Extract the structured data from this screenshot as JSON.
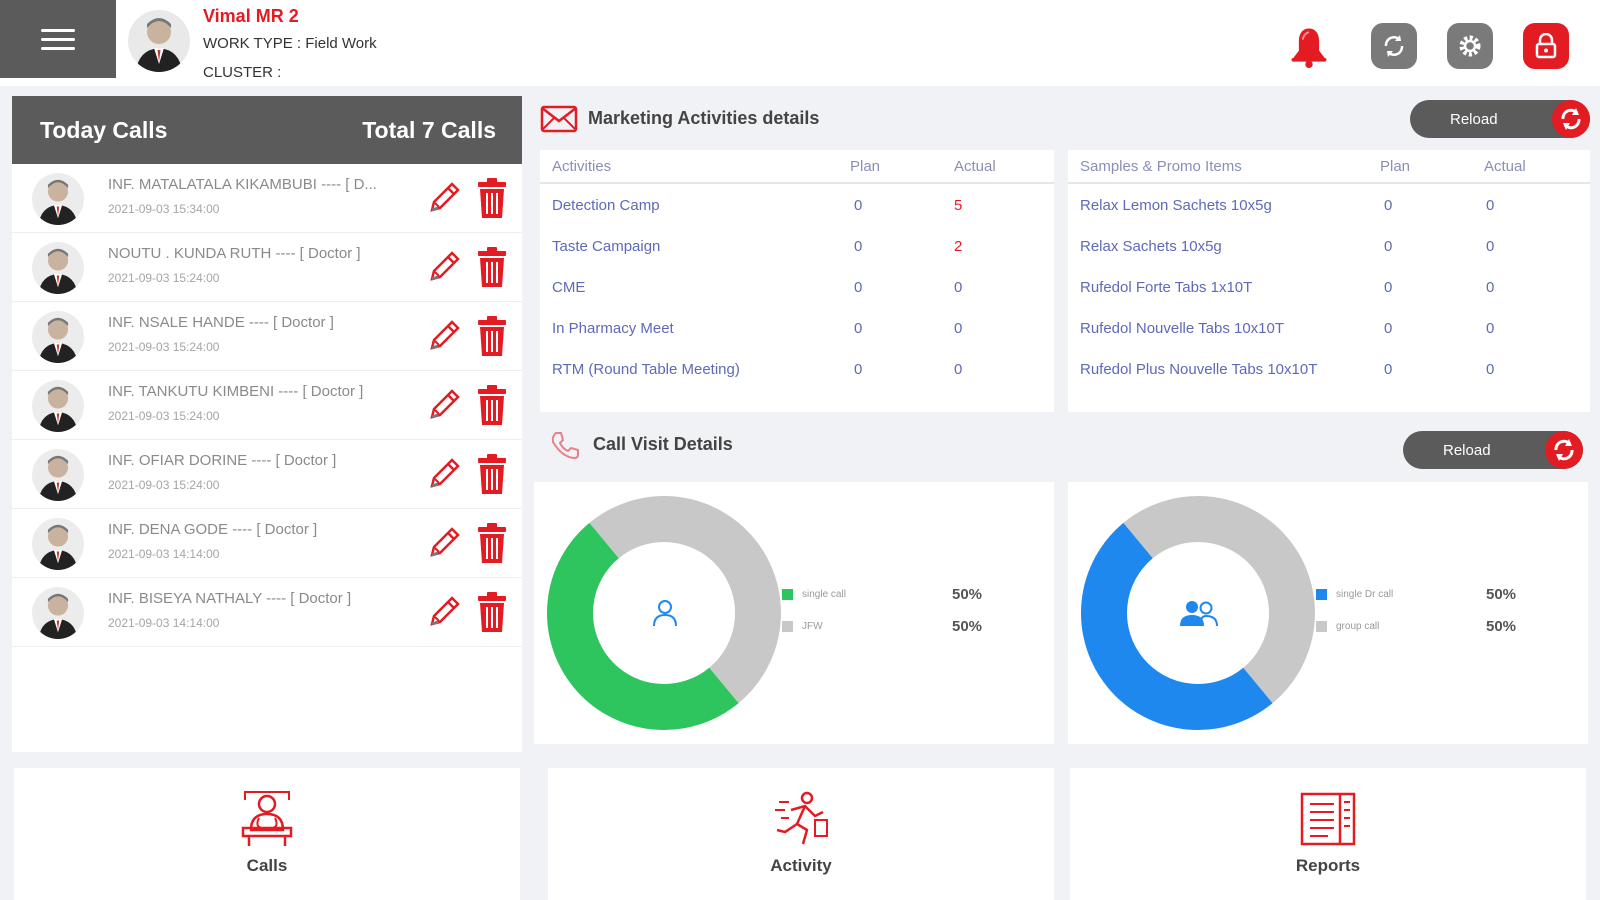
{
  "header": {
    "user_name": "Vimal MR 2",
    "work_type": "WORK TYPE : Field Work",
    "cluster": "CLUSTER :",
    "icons": [
      "bell-icon",
      "sync-icon",
      "settings-icon",
      "lock-icon"
    ]
  },
  "today_calls": {
    "title": "Today Calls",
    "total": "Total 7 Calls",
    "items": [
      {
        "name": "INF. MATALATALA KIKAMBUBI ---- [ D...",
        "time": "2021-09-03 15:34:00"
      },
      {
        "name": "NOUTU . KUNDA RUTH ---- [ Doctor ]",
        "time": "2021-09-03 15:24:00"
      },
      {
        "name": "INF. NSALE HANDE ---- [ Doctor ]",
        "time": "2021-09-03 15:24:00"
      },
      {
        "name": "INF. TANKUTU KIMBENI ---- [ Doctor ]",
        "time": "2021-09-03 15:24:00"
      },
      {
        "name": "INF. OFIAR DORINE ---- [ Doctor ]",
        "time": "2021-09-03 15:24:00"
      },
      {
        "name": "INF. DENA GODE ---- [ Doctor ]",
        "time": "2021-09-03 14:14:00"
      },
      {
        "name": "INF. BISEYA NATHALY ---- [ Doctor ]",
        "time": "2021-09-03 14:14:00"
      }
    ]
  },
  "marketing": {
    "title": "Marketing Activities details",
    "reload": "Reload",
    "activities": {
      "headers": [
        "Activities",
        "Plan",
        "Actual"
      ],
      "rows": [
        {
          "name": "Detection Camp",
          "plan": "0",
          "actual": "5",
          "actual_red": true
        },
        {
          "name": "Taste Campaign",
          "plan": "0",
          "actual": "2",
          "actual_red": true
        },
        {
          "name": "CME",
          "plan": "0",
          "actual": "0",
          "actual_red": false
        },
        {
          "name": "In Pharmacy Meet",
          "plan": "0",
          "actual": "0",
          "actual_red": false
        },
        {
          "name": "RTM (Round Table Meeting)",
          "plan": "0",
          "actual": "0",
          "actual_red": false
        }
      ]
    },
    "samples": {
      "headers": [
        "Samples & Promo Items",
        "Plan",
        "Actual"
      ],
      "rows": [
        {
          "name": "Relax Lemon Sachets 10x5g",
          "plan": "0",
          "actual": "0"
        },
        {
          "name": "Relax Sachets 10x5g",
          "plan": "0",
          "actual": "0"
        },
        {
          "name": "Rufedol Forte Tabs 1x10T",
          "plan": "0",
          "actual": "0"
        },
        {
          "name": "Rufedol Nouvelle Tabs 10x10T",
          "plan": "0",
          "actual": "0"
        },
        {
          "name": "Rufedol Plus Nouvelle Tabs 10x10T",
          "plan": "0",
          "actual": "0"
        }
      ]
    }
  },
  "call_visit": {
    "title": "Call Visit Details",
    "reload": "Reload"
  },
  "chart_data": [
    {
      "type": "pie",
      "categories": [
        "single call",
        "JFW"
      ],
      "values": [
        50,
        50
      ],
      "labels": [
        "50%",
        "50%"
      ],
      "colors": [
        "#2ec45e",
        "#c8c8c8"
      ]
    },
    {
      "type": "pie",
      "categories": [
        "single Dr call",
        "group call"
      ],
      "values": [
        50,
        50
      ],
      "labels": [
        "50%",
        "50%"
      ],
      "colors": [
        "#1e88ee",
        "#c8c8c8"
      ]
    }
  ],
  "tiles": [
    {
      "label": "Calls",
      "icon": "doctor-icon"
    },
    {
      "label": "Activity",
      "icon": "activity-icon"
    },
    {
      "label": "Reports",
      "icon": "reports-icon"
    }
  ]
}
